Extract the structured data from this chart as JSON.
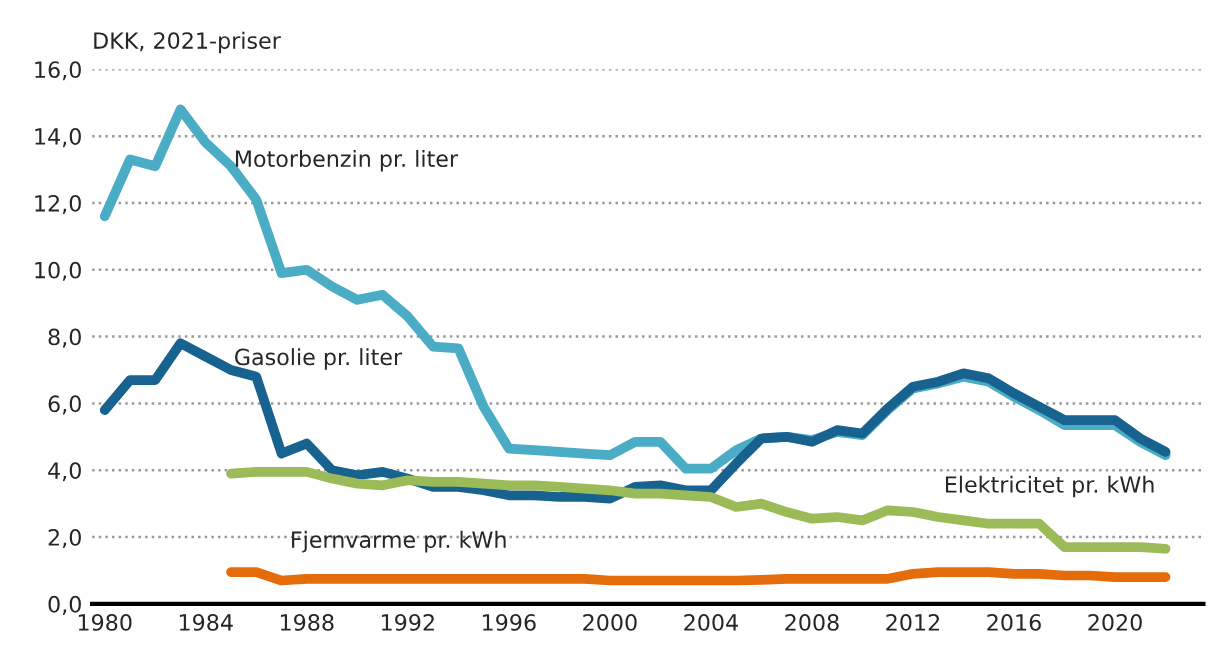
{
  "chart_data": {
    "type": "line",
    "ylabel": "DKK, 2021-priser",
    "x": [
      1980,
      1981,
      1982,
      1983,
      1984,
      1985,
      1986,
      1987,
      1988,
      1989,
      1990,
      1991,
      1992,
      1993,
      1994,
      1995,
      1996,
      1997,
      1998,
      1999,
      2000,
      2001,
      2002,
      2003,
      2004,
      2005,
      2006,
      2007,
      2008,
      2009,
      2010,
      2011,
      2012,
      2013,
      2014,
      2015,
      2016,
      2017,
      2018,
      2019,
      2020,
      2021,
      2022
    ],
    "series": [
      {
        "color": "#4bacc6",
        "values": [
          11.6,
          13.3,
          13.1,
          14.8,
          13.8,
          13.1,
          12.1,
          9.9,
          10.0,
          9.5,
          9.1,
          9.25,
          8.6,
          7.7,
          7.65,
          5.9,
          4.65,
          4.6,
          4.55,
          4.5,
          4.45,
          4.85,
          4.85,
          4.05,
          4.05,
          4.6,
          4.95,
          5.0,
          4.9,
          5.15,
          5.05,
          5.8,
          6.45,
          6.6,
          6.8,
          6.65,
          6.2,
          5.8,
          5.35,
          5.35,
          5.35,
          4.85,
          4.45
        ]
      },
      {
        "color": "#17628f",
        "values": [
          5.8,
          6.7,
          6.7,
          7.8,
          7.4,
          7.0,
          6.8,
          4.5,
          4.8,
          4.0,
          3.85,
          3.95,
          3.75,
          3.5,
          3.5,
          3.4,
          3.25,
          3.25,
          3.2,
          3.2,
          3.15,
          3.5,
          3.55,
          3.4,
          3.4,
          4.2,
          4.95,
          5.0,
          4.85,
          5.2,
          5.1,
          5.85,
          6.5,
          6.65,
          6.9,
          6.75,
          6.3,
          5.9,
          5.5,
          5.5,
          5.5,
          4.95,
          4.55
        ]
      },
      {
        "color": "#9bbb59",
        "values": [
          null,
          null,
          null,
          null,
          null,
          3.9,
          3.95,
          3.95,
          3.95,
          3.75,
          3.6,
          3.55,
          3.7,
          3.65,
          3.65,
          3.6,
          3.55,
          3.55,
          3.5,
          3.45,
          3.4,
          3.3,
          3.3,
          3.25,
          3.2,
          2.9,
          3.0,
          2.75,
          2.55,
          2.6,
          2.5,
          2.8,
          2.75,
          2.6,
          2.5,
          2.4,
          2.4,
          2.4,
          1.7,
          1.7,
          1.7,
          1.7,
          1.65
        ]
      },
      {
        "color": "#e46c0a",
        "values": [
          null,
          null,
          null,
          null,
          null,
          0.95,
          0.95,
          0.7,
          0.75,
          0.75,
          0.75,
          0.75,
          0.75,
          0.75,
          0.75,
          0.75,
          0.75,
          0.75,
          0.75,
          0.75,
          0.7,
          0.7,
          0.7,
          0.7,
          0.7,
          0.7,
          0.72,
          0.75,
          0.75,
          0.75,
          0.75,
          0.75,
          0.9,
          0.95,
          0.95,
          0.95,
          0.9,
          0.9,
          0.85,
          0.85,
          0.8,
          0.8,
          0.8
        ]
      }
    ],
    "annotations": [
      {
        "text": "Motorbenzin pr. liter",
        "x": 1985,
        "y": 13.1
      },
      {
        "text": "Gasolie pr. liter",
        "x": 1985,
        "y": 7.0
      },
      {
        "text": "Elektricitet pr. kWh",
        "x": 2013,
        "y": 2.6
      },
      {
        "text": "Fjernvarme pr. kWh",
        "x": 1987,
        "y": 0.7
      }
    ],
    "xlim": [
      1979.5,
      2023.5
    ],
    "xticks": [
      1980,
      1984,
      1988,
      1992,
      1996,
      2000,
      2004,
      2008,
      2012,
      2016,
      2020
    ],
    "ylim": [
      0,
      16
    ],
    "yticks": [
      {
        "value": 0,
        "label": "0,0"
      },
      {
        "value": 2,
        "label": "2,0"
      },
      {
        "value": 4,
        "label": "4,0"
      },
      {
        "value": 6,
        "label": "6,0"
      },
      {
        "value": 8,
        "label": "8,0"
      },
      {
        "value": 10,
        "label": "10,0"
      },
      {
        "value": 12,
        "label": "12,0"
      },
      {
        "value": 14,
        "label": "14,0"
      },
      {
        "value": 16,
        "label": "16,0"
      }
    ],
    "grid": "y",
    "legend": false,
    "line_style": "solid",
    "marker": "none"
  }
}
